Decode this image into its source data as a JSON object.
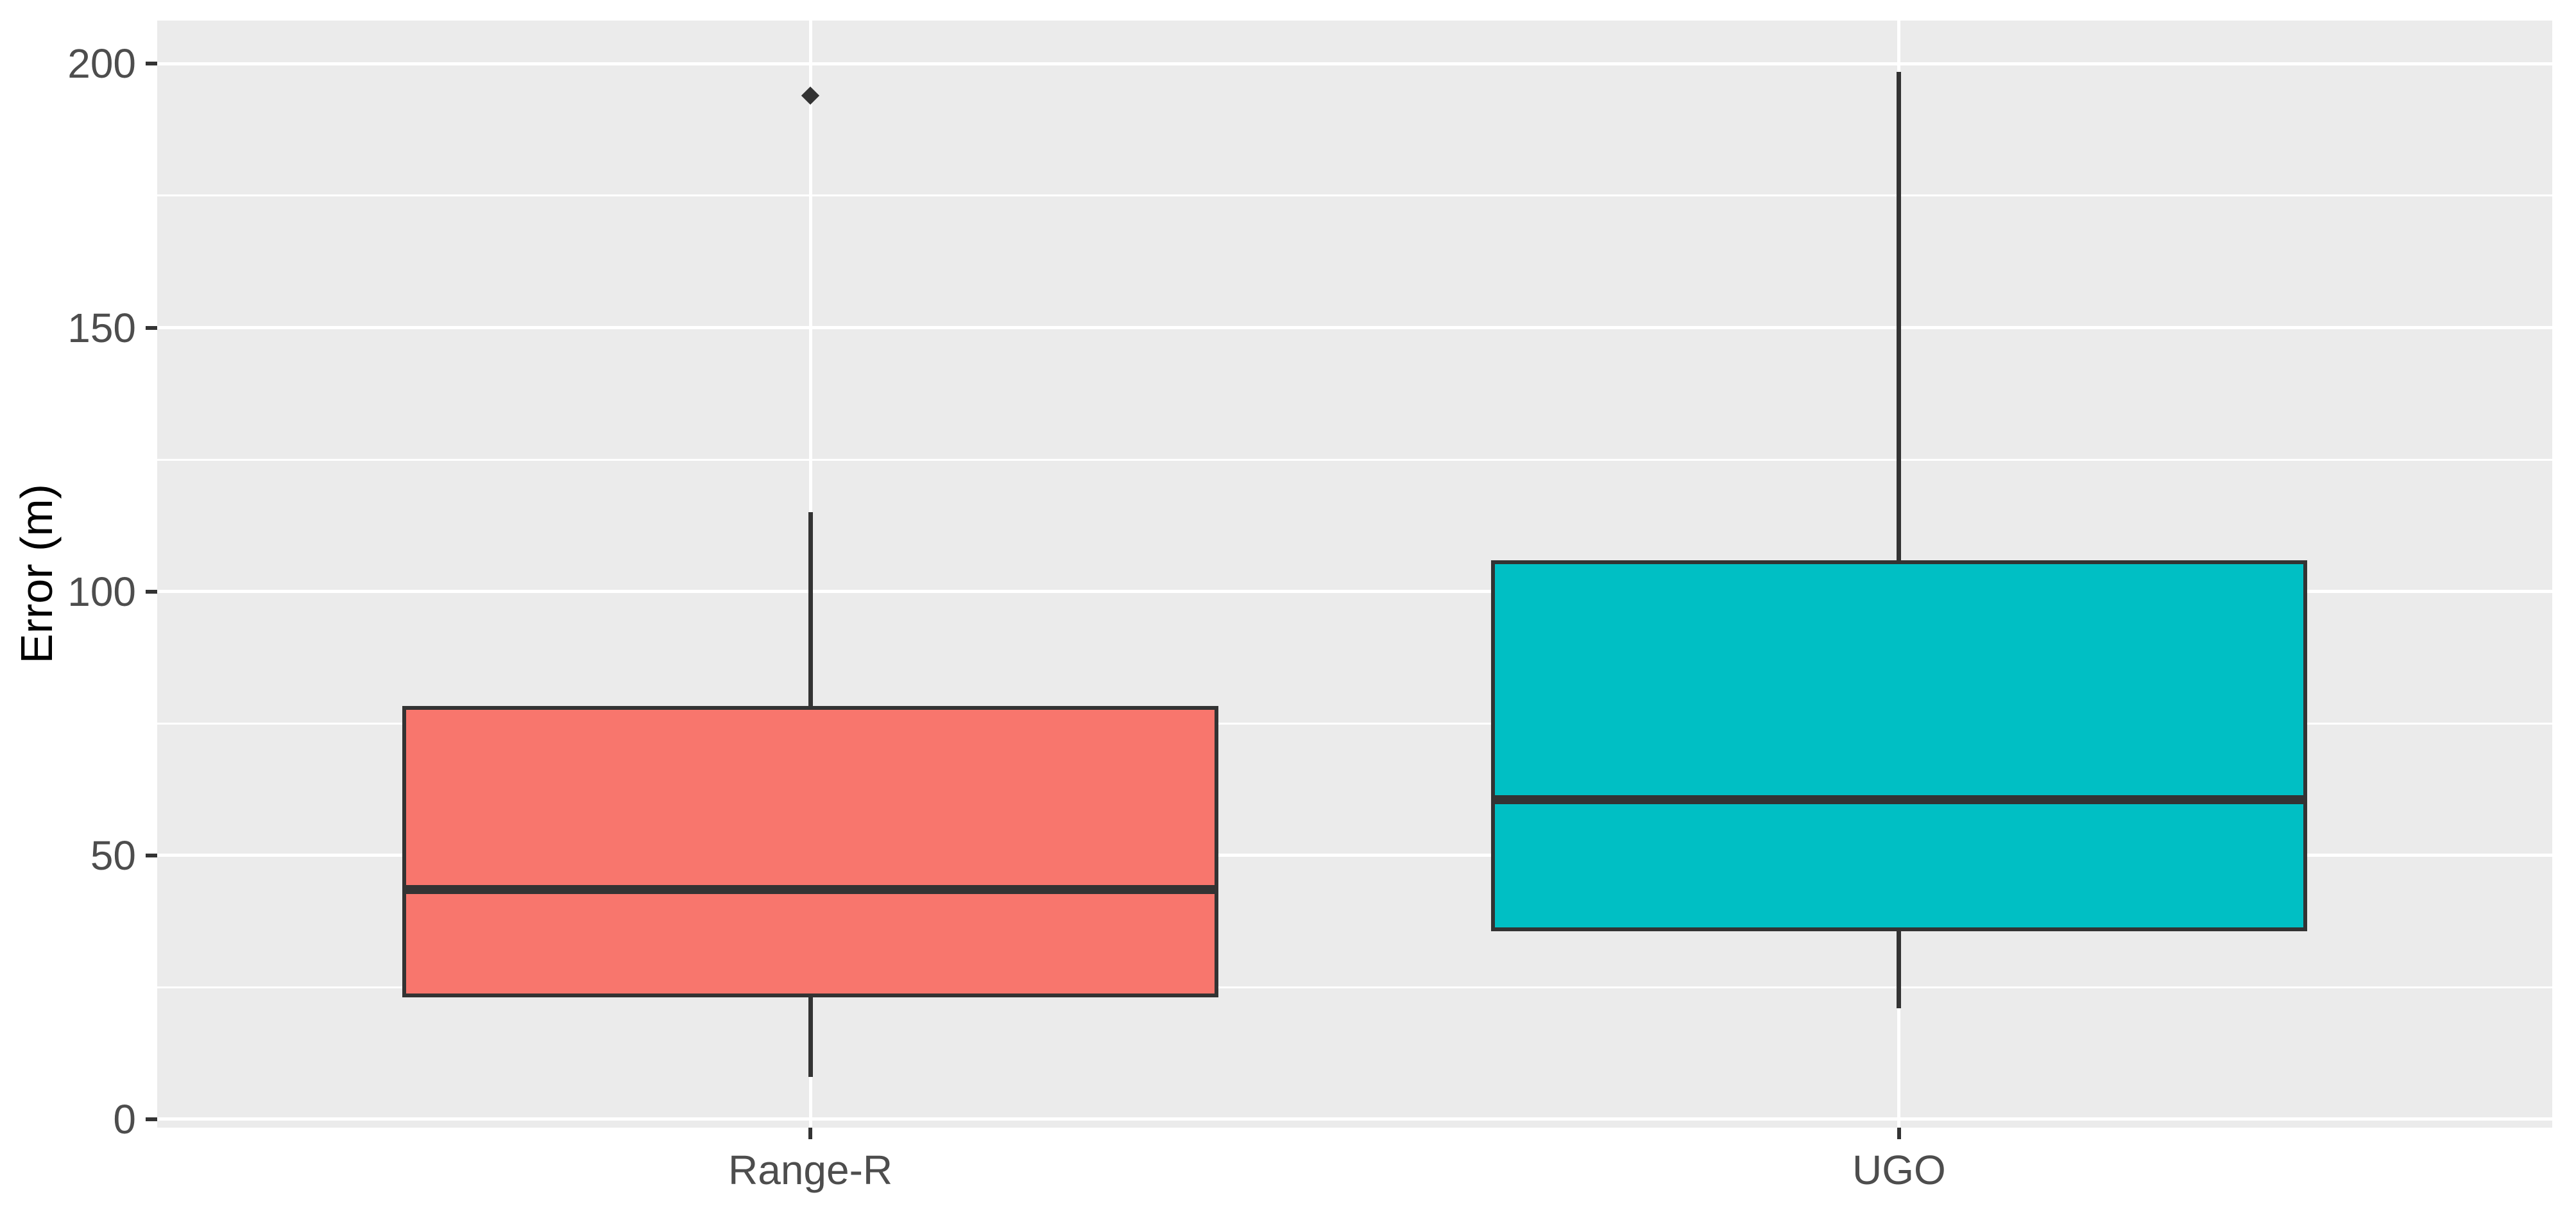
{
  "style": {
    "background": "#FFFFFF",
    "panel_bg": "#EBEBEB",
    "grid_color": "#FFFFFF",
    "stroke_color": "#333333",
    "tick_text_color": "#4D4D4D",
    "title_text_color": "#000000"
  },
  "chart_data": {
    "type": "boxplot",
    "title": "",
    "xlabel": "",
    "ylabel": "Error (m)",
    "categories": [
      "Range-R",
      "UGO"
    ],
    "y_ticks": [
      0,
      50,
      100,
      150,
      200
    ],
    "y_minor_ticks": [
      25,
      75,
      125,
      175
    ],
    "ylim": [
      -1.6,
      208.2
    ],
    "grid": true,
    "legend": false,
    "series": [
      {
        "name": "Range-R",
        "fill": "#F8766D",
        "whisker_low": 8,
        "q1": 23.5,
        "median": 43.5,
        "q3": 78,
        "whisker_high": 115,
        "outliers": [
          194
        ]
      },
      {
        "name": "UGO",
        "fill": "#00BFC4",
        "whisker_low": 21,
        "q1": 36,
        "median": 60.5,
        "q3": 105.5,
        "whisker_high": 198.5,
        "outliers": []
      }
    ]
  }
}
